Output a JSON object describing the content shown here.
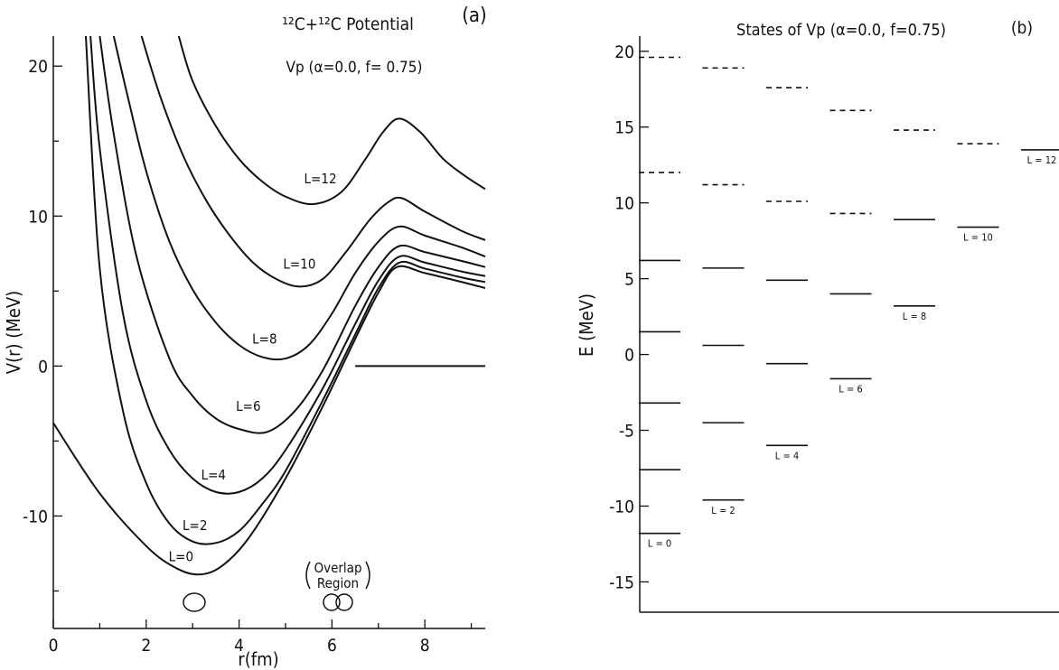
{
  "panel_a": {
    "label": "(a)",
    "title": "¹²C+¹²C Potential",
    "subtitle": "Vp (α=0.0, f= 0.75)",
    "ylabel": "V(r) (MeV)",
    "xlabel": "r(fm)",
    "overlap_label_line1": "Overlap",
    "overlap_label_line2": "Region"
  },
  "panel_b": {
    "label": "(b)",
    "title": "States of Vp (α=0.0, f=0.75)",
    "ylabel": "E (MeV)"
  },
  "chart_data": [
    {
      "type": "line",
      "title": "¹²C+¹²C Potential",
      "subtitle": "Vp (α=0.0, f= 0.75)",
      "xlabel": "r(fm)",
      "ylabel": "V(r) (MeV)",
      "xlim": [
        0,
        9.3
      ],
      "ylim": [
        -17.5,
        22
      ],
      "xticks": [
        0,
        2,
        4,
        6,
        8
      ],
      "yticks": [
        -10,
        0,
        10,
        20
      ],
      "grid": false,
      "series": [
        {
          "name": "L=0",
          "x": [
            0,
            1,
            2,
            2.6,
            3.1,
            3.6,
            4.2,
            5,
            5.8,
            6.5,
            7.0,
            7.4,
            8.0,
            8.8,
            9.3
          ],
          "y": [
            -3.8,
            -8.5,
            -12.0,
            -13.4,
            -13.9,
            -13.4,
            -11.5,
            -7.5,
            -2.7,
            1.8,
            4.9,
            6.6,
            6.2,
            5.6,
            5.2
          ]
        },
        {
          "name": "L=2",
          "x": [
            0.7,
            1.0,
            1.5,
            2.0,
            2.5,
            3.0,
            3.5,
            4.0,
            4.5,
            5.0,
            5.8,
            6.5,
            7.0,
            7.45,
            8.0,
            8.8,
            9.3
          ],
          "y": [
            22,
            6.5,
            -3.0,
            -7.8,
            -10.5,
            -11.7,
            -11.8,
            -11.0,
            -9.2,
            -7.0,
            -2.3,
            2.1,
            5.2,
            6.9,
            6.5,
            5.9,
            5.6
          ]
        },
        {
          "name": "L=4",
          "x": [
            0.8,
            1.0,
            1.5,
            2.0,
            2.5,
            3.0,
            3.5,
            4.0,
            4.5,
            5.0,
            5.8,
            6.5,
            7.0,
            7.45,
            8.0,
            8.8,
            9.3
          ],
          "y": [
            22,
            14.5,
            3.5,
            -2.3,
            -5.6,
            -7.5,
            -8.4,
            -8.4,
            -7.5,
            -5.6,
            -1.5,
            2.8,
            5.7,
            7.3,
            6.9,
            6.3,
            6.0
          ]
        },
        {
          "name": "L=6",
          "x": [
            1.0,
            1.3,
            1.8,
            2.5,
            3.0,
            3.5,
            4.0,
            4.6,
            5.2,
            5.8,
            6.5,
            7.0,
            7.45,
            8.0,
            8.8,
            9.3
          ],
          "y": [
            22,
            15.5,
            7.2,
            0.5,
            -2.0,
            -3.5,
            -4.2,
            -4.4,
            -3.0,
            -0.3,
            4.0,
            6.6,
            8.0,
            7.6,
            7.0,
            6.6
          ]
        },
        {
          "name": "L=8",
          "x": [
            1.3,
            1.6,
            2.0,
            2.5,
            3.0,
            3.5,
            4.0,
            4.5,
            5.0,
            5.5,
            6.0,
            6.5,
            7.0,
            7.45,
            8.0,
            8.8,
            9.3
          ],
          "y": [
            22,
            18.0,
            13.0,
            8.3,
            5.1,
            2.9,
            1.4,
            0.6,
            0.5,
            1.4,
            3.5,
            6.2,
            8.3,
            9.3,
            8.7,
            7.9,
            7.3
          ]
        },
        {
          "name": "L=10",
          "x": [
            1.9,
            2.3,
            2.8,
            3.3,
            3.8,
            4.3,
            4.8,
            5.3,
            5.8,
            6.3,
            6.8,
            7.2,
            7.5,
            8.0,
            8.8,
            9.3
          ],
          "y": [
            22,
            18.0,
            14.0,
            11.0,
            8.7,
            6.9,
            5.8,
            5.3,
            5.8,
            7.6,
            9.7,
            10.9,
            11.2,
            10.3,
            9.0,
            8.4
          ]
        },
        {
          "name": "L=12",
          "x": [
            2.7,
            3.0,
            3.5,
            4.0,
            4.5,
            5.0,
            5.6,
            6.2,
            6.7,
            7.1,
            7.45,
            7.9,
            8.4,
            8.9,
            9.3
          ],
          "y": [
            22,
            19.0,
            16.0,
            13.8,
            12.3,
            11.3,
            10.8,
            11.6,
            13.7,
            15.6,
            16.5,
            15.6,
            13.8,
            12.6,
            11.8
          ]
        }
      ],
      "reference_line": {
        "y": 0,
        "x": [
          6.5,
          9.3
        ]
      },
      "annotations": [
        "(a)",
        "Overlap Region"
      ]
    },
    {
      "type": "level_diagram",
      "title": "States of Vp (α=0.0, f=0.75)",
      "ylabel": "E (MeV)",
      "ylim": [
        -17,
        21
      ],
      "yticks": [
        -15,
        -10,
        -5,
        0,
        5,
        10,
        15,
        20
      ],
      "columns": [
        {
          "name": "L = 0",
          "solid": [
            -11.8,
            -7.6,
            -3.2,
            1.5,
            6.2
          ],
          "dashed": [
            12.0,
            19.6
          ]
        },
        {
          "name": "L = 2",
          "solid": [
            -9.6,
            -4.5,
            0.6,
            5.7
          ],
          "dashed": [
            11.2,
            18.9
          ]
        },
        {
          "name": "L = 4",
          "solid": [
            -6.0,
            -0.6,
            4.9
          ],
          "dashed": [
            10.1,
            17.6
          ]
        },
        {
          "name": "L = 6",
          "solid": [
            -1.6,
            4.0
          ],
          "dashed": [
            9.3,
            16.1
          ]
        },
        {
          "name": "L = 8",
          "solid": [
            3.2,
            8.9
          ],
          "dashed": [
            14.8
          ]
        },
        {
          "name": "L = 10",
          "solid": [
            8.4
          ],
          "dashed": [
            13.9
          ]
        },
        {
          "name": "L = 12",
          "solid": [
            13.5
          ],
          "dashed": []
        }
      ],
      "annotations": [
        "(b)"
      ]
    }
  ]
}
